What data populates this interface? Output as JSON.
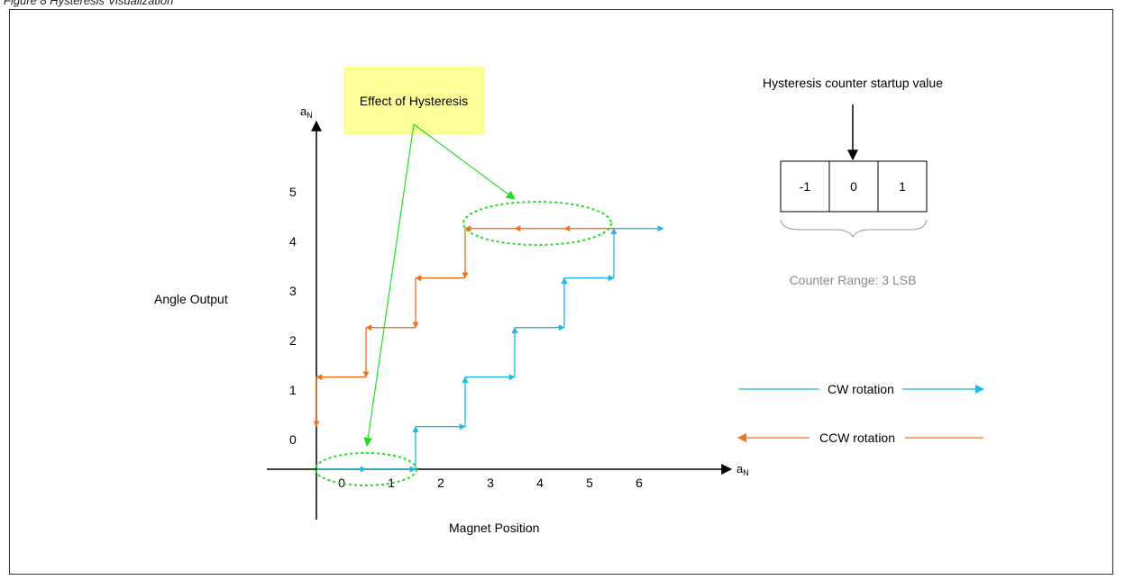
{
  "caption": "Figure 8 Hysteresis Visualization",
  "colors": {
    "cw": "#1fb6e8",
    "ccw": "#f2711c",
    "annotation": "#22dd22",
    "annotation_box": "#ffff99",
    "axis": "#000000",
    "counter_label": "#8a8a8a"
  },
  "diagram": {
    "y_axis_symbol": "a",
    "y_axis_subscript": "N",
    "x_axis_symbol": "a",
    "x_axis_subscript": "N",
    "y_axis_title": "Angle Output",
    "x_axis_title": "Magnet Position",
    "y_ticks": [
      "0",
      "1",
      "2",
      "3",
      "4",
      "5"
    ],
    "x_ticks": [
      "0",
      "1",
      "2",
      "3",
      "4",
      "5",
      "6"
    ],
    "annotation_label": "Effect of Hysteresis",
    "counter": {
      "title": "Hysteresis counter startup value",
      "cells": [
        "-1",
        "0",
        "1"
      ],
      "range_label": "Counter Range: 3 LSB"
    },
    "legend": {
      "cw_label": "CW rotation",
      "ccw_label": "CCW rotation"
    }
  }
}
